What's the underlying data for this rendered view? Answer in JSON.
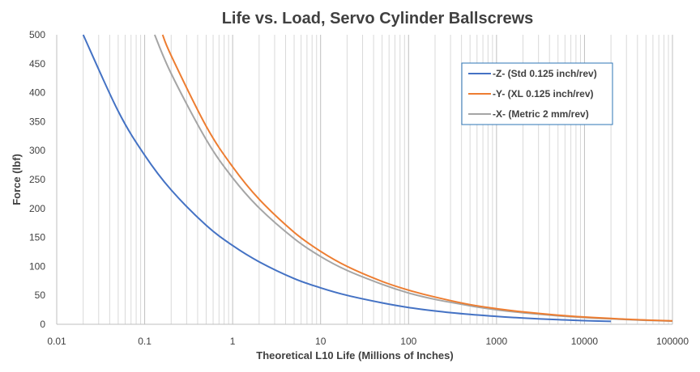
{
  "chart_data": {
    "type": "line",
    "title": "Life vs. Load, Servo Cylinder Ballscrews",
    "xlabel": "Theoretical L10 Life (Millions of Inches)",
    "ylabel": "Force (lbf)",
    "x_scale": "log",
    "xlim": [
      0.01,
      100000
    ],
    "ylim": [
      0,
      500
    ],
    "x_ticks": [
      "0.01",
      "0.1",
      "1",
      "10",
      "100",
      "1000",
      "10000",
      "100000"
    ],
    "y_ticks": [
      "0",
      "50",
      "100",
      "150",
      "200",
      "250",
      "300",
      "350",
      "400",
      "450",
      "500"
    ],
    "grid": "vertical minor and major gridlines",
    "legend_position": "top-right",
    "series": [
      {
        "name": "-Z- (Std 0.125 inch/rev)",
        "color": "#4472C4",
        "x": [
          0.02,
          0.05,
          0.1,
          0.2,
          0.5,
          1,
          2,
          5,
          10,
          20,
          50,
          100,
          200,
          500,
          1000,
          2000,
          5000,
          10000,
          20000
        ],
        "y": [
          500,
          368,
          292,
          232,
          171,
          136,
          108,
          79,
          63,
          50,
          37,
          29,
          23,
          17,
          13.6,
          10.8,
          7.9,
          6.3,
          5
        ]
      },
      {
        "name": "-Y- (XL 0.125 inch/rev)",
        "color": "#ED7D31",
        "x": [
          0.16,
          0.2,
          0.5,
          1,
          2,
          5,
          10,
          20,
          50,
          100,
          200,
          500,
          1000,
          2000,
          5000,
          10000,
          20000,
          50000,
          100000
        ],
        "y": [
          500,
          464,
          342,
          272,
          216,
          159,
          126,
          100,
          74,
          59,
          47,
          34,
          27,
          21.5,
          15.8,
          12.6,
          10,
          7.4,
          5.9
        ]
      },
      {
        "name": "-X- (Metric 2 mm/rev)",
        "color": "#A5A5A5",
        "x": [
          0.13,
          0.2,
          0.5,
          1,
          2,
          5,
          10,
          20,
          50,
          100,
          200,
          500,
          1000,
          2000,
          5000,
          10000,
          20000,
          50000,
          100000
        ],
        "y": [
          500,
          433,
          319,
          253,
          201,
          148,
          117,
          93,
          69,
          54,
          43,
          32,
          25,
          20,
          14.7,
          11.7,
          9.3,
          6.9,
          5.4
        ]
      }
    ]
  }
}
